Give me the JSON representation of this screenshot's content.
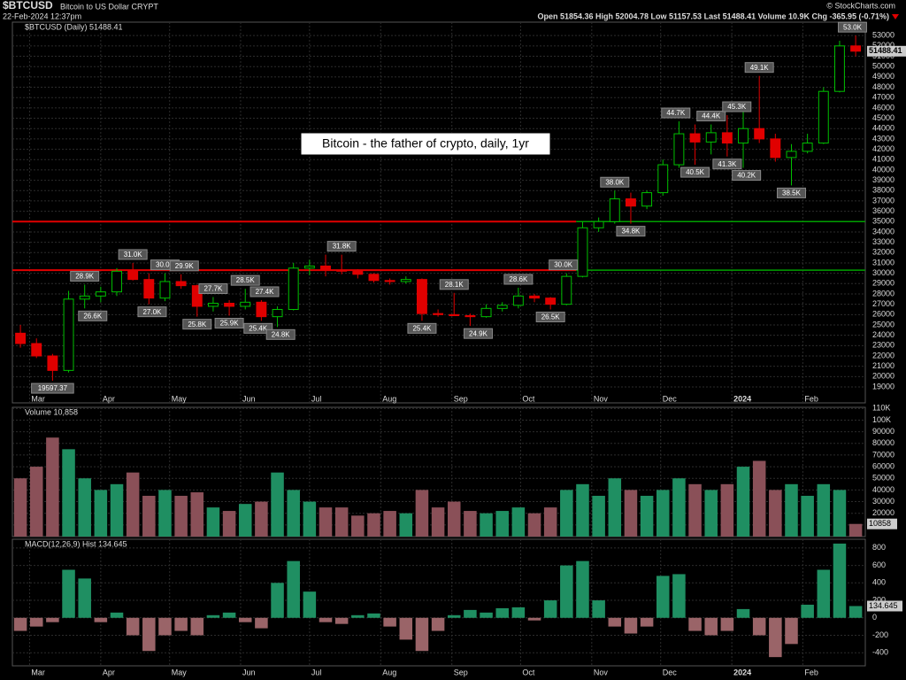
{
  "header": {
    "symbol": "$BTCUSD",
    "name": "Bitcoin to US Dollar  CRYPT",
    "date": "22-Feb-2024 12:37pm",
    "source": "© StockCharts.com",
    "quote": "Open 51854.36  High 52004.78  Low 51157.53  Last 51488.41  Volume 10.9K  Chg -365.95 (-0.71%)"
  },
  "chart_data": [
    {
      "type": "candlestick",
      "label": "$BTCUSD (Daily) 51488.41",
      "last_label": "51488.41",
      "textbox": "Bitcoin - the father of crypto, daily, 1yr",
      "up_color": "#00c000",
      "down_color": "#e00000",
      "grid": true,
      "xlim": [
        -0.5,
        52.6
      ],
      "xticks": [
        {
          "value": 0.57,
          "label": "Mar"
        },
        {
          "value": 5,
          "label": "Apr"
        },
        {
          "value": 9.29,
          "label": "May"
        },
        {
          "value": 13.71,
          "label": "Jun"
        },
        {
          "value": 18,
          "label": "Jul"
        },
        {
          "value": 22.43,
          "label": "Aug"
        },
        {
          "value": 26.86,
          "label": "Sep"
        },
        {
          "value": 31.14,
          "label": "Oct"
        },
        {
          "value": 35.57,
          "label": "Nov"
        },
        {
          "value": 39.86,
          "label": "Dec"
        },
        {
          "value": 44.29,
          "label": "2024"
        },
        {
          "value": 48.71,
          "label": "Feb"
        }
      ],
      "ylim": [
        17460,
        54300
      ],
      "yticks": [
        19000,
        20000,
        21000,
        22000,
        23000,
        24000,
        25000,
        26000,
        27000,
        28000,
        29000,
        30000,
        31000,
        32000,
        33000,
        34000,
        35000,
        36000,
        37000,
        38000,
        39000,
        40000,
        41000,
        42000,
        43000,
        44000,
        45000,
        46000,
        47000,
        48000,
        49000,
        50000,
        51000,
        52000,
        53000
      ],
      "open": [
        24200,
        23200,
        22000,
        20600,
        27500,
        27800,
        28200,
        30200,
        29400,
        27600,
        29200,
        28800,
        26800,
        27100,
        26800,
        27200,
        25800,
        26500,
        30500,
        30700,
        30300,
        30200,
        29900,
        29300,
        29200,
        29400,
        26100,
        26000,
        25900,
        25800,
        26600,
        26900,
        27800,
        27600,
        27000,
        29700,
        34400,
        35000,
        37200,
        36500,
        37800,
        40500,
        43500,
        42700,
        43600,
        42600,
        44000,
        43000,
        41200,
        41800,
        42600,
        47600,
        52000
      ],
      "high": [
        25000,
        23700,
        22200,
        28300,
        28900,
        28700,
        30500,
        31000,
        30000,
        30000,
        29900,
        28900,
        27700,
        27400,
        28500,
        27400,
        26800,
        31000,
        31300,
        31800,
        31800,
        30400,
        30000,
        29500,
        29700,
        29500,
        26500,
        28100,
        26100,
        27000,
        27200,
        28600,
        28000,
        27700,
        30000,
        35000,
        35400,
        38000,
        37800,
        38000,
        41000,
        44700,
        44400,
        44400,
        45300,
        45800,
        49100,
        43500,
        42500,
        43500,
        48000,
        52500,
        53000
      ],
      "low": [
        22800,
        21800,
        19597.37,
        20400,
        26600,
        27200,
        27800,
        29300,
        27000,
        27300,
        28500,
        25800,
        26300,
        25900,
        26500,
        25400,
        24800,
        26400,
        29800,
        29700,
        29900,
        29500,
        29100,
        28900,
        29000,
        25400,
        25800,
        25900,
        24900,
        25700,
        26300,
        26600,
        27200,
        26500,
        26900,
        29600,
        34000,
        34800,
        34800,
        36200,
        37500,
        40200,
        40500,
        41500,
        41300,
        40200,
        42600,
        40800,
        38500,
        41600,
        42500,
        47500,
        51000
      ],
      "close": [
        23200,
        22000,
        20600,
        27500,
        27800,
        28200,
        30200,
        29400,
        27600,
        29200,
        28800,
        26800,
        27100,
        26800,
        27200,
        25800,
        26500,
        30500,
        30700,
        30300,
        30200,
        29900,
        29300,
        29200,
        29400,
        26100,
        26000,
        25900,
        25800,
        26600,
        26900,
        27800,
        27600,
        27000,
        29700,
        34400,
        35000,
        37200,
        36500,
        37800,
        40500,
        43500,
        42700,
        43600,
        42600,
        44000,
        43000,
        41200,
        41800,
        42600,
        47600,
        52000,
        51488.41
      ],
      "lines": [
        {
          "value": 35000,
          "colors": [
            "#e00000",
            "#00a000"
          ],
          "x_break": 34.6
        },
        {
          "value": 30300,
          "colors": [
            "#e00000",
            "#00a000"
          ],
          "x_break": 34.6
        }
      ],
      "annotations": [
        {
          "label": "19597.37",
          "value": 19597.37,
          "x": 2,
          "pos": "below"
        },
        {
          "label": "28.9K",
          "value": 28900,
          "x": 4,
          "pos": "above"
        },
        {
          "label": "26.6K",
          "value": 26600,
          "x": 4.5,
          "pos": "below"
        },
        {
          "label": "31.0K",
          "value": 31000,
          "x": 7,
          "pos": "above"
        },
        {
          "label": "27.0K",
          "value": 27000,
          "x": 8.2,
          "pos": "below"
        },
        {
          "label": "30.0K",
          "value": 30000,
          "x": 9,
          "pos": "above"
        },
        {
          "label": "29.9K",
          "value": 29900,
          "x": 10.2,
          "pos": "above"
        },
        {
          "label": "25.8K",
          "value": 25800,
          "x": 11,
          "pos": "below"
        },
        {
          "label": "27.7K",
          "value": 27700,
          "x": 12,
          "pos": "above"
        },
        {
          "label": "25.9K",
          "value": 25900,
          "x": 13,
          "pos": "below"
        },
        {
          "label": "28.5K",
          "value": 28500,
          "x": 14,
          "pos": "above"
        },
        {
          "label": "27.4K",
          "value": 27400,
          "x": 15.2,
          "pos": "above"
        },
        {
          "label": "25.4K",
          "value": 25400,
          "x": 14.8,
          "pos": "below"
        },
        {
          "label": "24.8K",
          "value": 24800,
          "x": 16.2,
          "pos": "below"
        },
        {
          "label": "31.8K",
          "value": 31800,
          "x": 20,
          "pos": "above"
        },
        {
          "label": "25.4K",
          "value": 25400,
          "x": 25,
          "pos": "below"
        },
        {
          "label": "28.1K",
          "value": 28100,
          "x": 27,
          "pos": "above"
        },
        {
          "label": "24.9K",
          "value": 24900,
          "x": 28.5,
          "pos": "below"
        },
        {
          "label": "28.6K",
          "value": 28600,
          "x": 31,
          "pos": "above"
        },
        {
          "label": "26.5K",
          "value": 26500,
          "x": 33,
          "pos": "below"
        },
        {
          "label": "30.0K",
          "value": 30000,
          "x": 33.8,
          "pos": "above"
        },
        {
          "label": "38.0K",
          "value": 38000,
          "x": 37,
          "pos": "above"
        },
        {
          "label": "34.8K",
          "value": 34800,
          "x": 38,
          "pos": "below"
        },
        {
          "label": "44.7K",
          "value": 44700,
          "x": 40.8,
          "pos": "above"
        },
        {
          "label": "40.5K",
          "value": 40500,
          "x": 42,
          "pos": "below"
        },
        {
          "label": "44.4K",
          "value": 44400,
          "x": 43,
          "pos": "above"
        },
        {
          "label": "41.3K",
          "value": 41300,
          "x": 44,
          "pos": "below"
        },
        {
          "label": "45.3K",
          "value": 45300,
          "x": 44.6,
          "pos": "above"
        },
        {
          "label": "40.2K",
          "value": 40200,
          "x": 45.2,
          "pos": "below"
        },
        {
          "label": "49.1K",
          "value": 49100,
          "x": 46,
          "pos": "above"
        },
        {
          "label": "38.5K",
          "value": 38500,
          "x": 48,
          "pos": "below"
        },
        {
          "label": "53.0K",
          "value": 53000,
          "x": 51.8,
          "pos": "above"
        }
      ]
    },
    {
      "type": "volume",
      "label": "Volume 10,858",
      "last_label": "10858",
      "up_color": "#1f8f62",
      "down_color": "#8a5058",
      "grid": true,
      "ylim": [
        0,
        111000
      ],
      "yticks": [
        10000,
        20000,
        30000,
        40000,
        50000,
        60000,
        70000,
        80000,
        90000,
        {
          "value": 100000,
          "label": "100K"
        },
        {
          "value": 110000,
          "label": "110K"
        }
      ],
      "values": [
        50000,
        60000,
        85000,
        75000,
        50000,
        40000,
        45000,
        55000,
        35000,
        40000,
        35000,
        38000,
        25000,
        22000,
        28000,
        30000,
        55000,
        40000,
        30000,
        25000,
        25000,
        18000,
        20000,
        22000,
        20000,
        40000,
        25000,
        30000,
        22000,
        20000,
        22000,
        25000,
        20000,
        25000,
        40000,
        45000,
        35000,
        50000,
        40000,
        35000,
        40000,
        50000,
        45000,
        40000,
        45000,
        60000,
        65000,
        40000,
        45000,
        35000,
        45000,
        40000,
        10858
      ]
    },
    {
      "type": "histogram",
      "label": "MACD(12,26,9) Hist 134.645",
      "last_label": "134.645",
      "up_color": "#1f8f62",
      "down_color": "#9a6468",
      "grid": true,
      "ylim": [
        -550,
        900
      ],
      "yticks": [
        -400,
        -200,
        0,
        200,
        400,
        600,
        800
      ],
      "values": [
        -150,
        -100,
        -50,
        550,
        450,
        -50,
        60,
        -200,
        -380,
        -200,
        -150,
        -200,
        30,
        60,
        -50,
        -120,
        400,
        650,
        300,
        -50,
        -70,
        30,
        50,
        -100,
        -250,
        -380,
        -150,
        30,
        90,
        60,
        110,
        120,
        -30,
        200,
        600,
        650,
        200,
        -100,
        -180,
        -100,
        480,
        500,
        -150,
        -200,
        -150,
        100,
        -200,
        -450,
        -300,
        150,
        550,
        850,
        134.645
      ]
    }
  ]
}
